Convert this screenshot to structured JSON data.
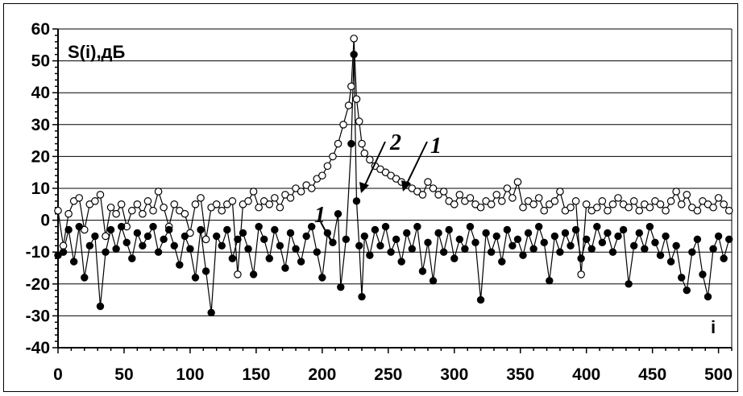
{
  "chart_data": {
    "type": "line",
    "ylabel": "S(i),дБ",
    "xlabel": "i",
    "xlim": [
      0,
      510
    ],
    "ylim": [
      -40,
      60
    ],
    "x_ticks": [
      "0",
      "50",
      "100",
      "150",
      "200",
      "250",
      "300",
      "350",
      "400",
      "450",
      "500"
    ],
    "y_ticks": [
      "60",
      "50",
      "40",
      "30",
      "20",
      "10",
      "0",
      "-10",
      "-20",
      "-30",
      "-40"
    ],
    "grid": "horizontal",
    "series": [
      {
        "marker": "open-circle",
        "curve_label": "1",
        "peak": {
          "x": 224,
          "y": 57
        },
        "points": [
          [
            0,
            3
          ],
          [
            4,
            -8
          ],
          [
            8,
            2
          ],
          [
            12,
            6
          ],
          [
            16,
            7
          ],
          [
            20,
            -3
          ],
          [
            24,
            5
          ],
          [
            28,
            6
          ],
          [
            32,
            8
          ],
          [
            36,
            -5
          ],
          [
            40,
            4
          ],
          [
            44,
            2
          ],
          [
            48,
            5
          ],
          [
            52,
            -2
          ],
          [
            56,
            3
          ],
          [
            60,
            5
          ],
          [
            64,
            2
          ],
          [
            68,
            6
          ],
          [
            72,
            3
          ],
          [
            76,
            9
          ],
          [
            80,
            4
          ],
          [
            84,
            -2
          ],
          [
            88,
            5
          ],
          [
            92,
            3
          ],
          [
            96,
            2
          ],
          [
            100,
            -4
          ],
          [
            104,
            5
          ],
          [
            108,
            7
          ],
          [
            112,
            -6
          ],
          [
            116,
            4
          ],
          [
            120,
            5
          ],
          [
            124,
            3
          ],
          [
            128,
            5
          ],
          [
            132,
            6
          ],
          [
            136,
            -17
          ],
          [
            140,
            5
          ],
          [
            144,
            6
          ],
          [
            148,
            9
          ],
          [
            152,
            4
          ],
          [
            156,
            6
          ],
          [
            160,
            5
          ],
          [
            164,
            7
          ],
          [
            168,
            4
          ],
          [
            172,
            8
          ],
          [
            176,
            7
          ],
          [
            180,
            10
          ],
          [
            184,
            9
          ],
          [
            188,
            11
          ],
          [
            192,
            10
          ],
          [
            196,
            13
          ],
          [
            200,
            14
          ],
          [
            204,
            17
          ],
          [
            208,
            20
          ],
          [
            212,
            24
          ],
          [
            216,
            30
          ],
          [
            220,
            36
          ],
          [
            222,
            42
          ],
          [
            224,
            57
          ],
          [
            226,
            38
          ],
          [
            228,
            31
          ],
          [
            230,
            24
          ],
          [
            232,
            21
          ],
          [
            236,
            19
          ],
          [
            240,
            17
          ],
          [
            244,
            16
          ],
          [
            248,
            15
          ],
          [
            252,
            14
          ],
          [
            256,
            13
          ],
          [
            260,
            12
          ],
          [
            264,
            11
          ],
          [
            268,
            10
          ],
          [
            272,
            9
          ],
          [
            276,
            8
          ],
          [
            280,
            12
          ],
          [
            284,
            10
          ],
          [
            288,
            8
          ],
          [
            292,
            9
          ],
          [
            296,
            6
          ],
          [
            300,
            5
          ],
          [
            304,
            8
          ],
          [
            308,
            6
          ],
          [
            312,
            7
          ],
          [
            316,
            5
          ],
          [
            320,
            4
          ],
          [
            324,
            6
          ],
          [
            328,
            5
          ],
          [
            332,
            8
          ],
          [
            336,
            6
          ],
          [
            340,
            10
          ],
          [
            344,
            7
          ],
          [
            348,
            12
          ],
          [
            352,
            4
          ],
          [
            356,
            6
          ],
          [
            360,
            5
          ],
          [
            364,
            7
          ],
          [
            368,
            3
          ],
          [
            372,
            5
          ],
          [
            376,
            6
          ],
          [
            380,
            9
          ],
          [
            384,
            3
          ],
          [
            388,
            4
          ],
          [
            392,
            6
          ],
          [
            396,
            -17
          ],
          [
            400,
            5
          ],
          [
            404,
            3
          ],
          [
            408,
            4
          ],
          [
            412,
            6
          ],
          [
            416,
            3
          ],
          [
            420,
            5
          ],
          [
            424,
            7
          ],
          [
            428,
            5
          ],
          [
            432,
            4
          ],
          [
            436,
            6
          ],
          [
            440,
            3
          ],
          [
            444,
            5
          ],
          [
            448,
            4
          ],
          [
            452,
            6
          ],
          [
            456,
            5
          ],
          [
            460,
            3
          ],
          [
            464,
            6
          ],
          [
            468,
            9
          ],
          [
            472,
            5
          ],
          [
            476,
            8
          ],
          [
            480,
            4
          ],
          [
            484,
            3
          ],
          [
            488,
            6
          ],
          [
            492,
            5
          ],
          [
            496,
            4
          ],
          [
            500,
            7
          ],
          [
            504,
            5
          ],
          [
            508,
            3
          ]
        ]
      },
      {
        "marker": "filled-circle",
        "curve_label": "2",
        "peak": {
          "x": 224,
          "y": 52
        },
        "points": [
          [
            0,
            -11
          ],
          [
            4,
            -10
          ],
          [
            8,
            -3
          ],
          [
            12,
            -13
          ],
          [
            16,
            -2
          ],
          [
            20,
            -18
          ],
          [
            24,
            -8
          ],
          [
            28,
            -5
          ],
          [
            32,
            -27
          ],
          [
            36,
            -10
          ],
          [
            40,
            -3
          ],
          [
            44,
            -9
          ],
          [
            48,
            -2
          ],
          [
            52,
            -7
          ],
          [
            56,
            -12
          ],
          [
            60,
            -4
          ],
          [
            64,
            -8
          ],
          [
            68,
            -5
          ],
          [
            72,
            -2
          ],
          [
            76,
            -10
          ],
          [
            80,
            -6
          ],
          [
            84,
            -3
          ],
          [
            88,
            -8
          ],
          [
            92,
            -14
          ],
          [
            96,
            -5
          ],
          [
            100,
            -9
          ],
          [
            104,
            -18
          ],
          [
            108,
            -3
          ],
          [
            112,
            -16
          ],
          [
            116,
            -29
          ],
          [
            120,
            -5
          ],
          [
            124,
            -8
          ],
          [
            128,
            -3
          ],
          [
            132,
            -12
          ],
          [
            136,
            -6
          ],
          [
            140,
            -4
          ],
          [
            144,
            -9
          ],
          [
            148,
            -17
          ],
          [
            152,
            -2
          ],
          [
            156,
            -6
          ],
          [
            160,
            -12
          ],
          [
            164,
            -3
          ],
          [
            168,
            -8
          ],
          [
            172,
            -15
          ],
          [
            176,
            -4
          ],
          [
            180,
            -9
          ],
          [
            184,
            -13
          ],
          [
            188,
            -5
          ],
          [
            192,
            -2
          ],
          [
            196,
            -10
          ],
          [
            200,
            -18
          ],
          [
            204,
            -4
          ],
          [
            208,
            -7
          ],
          [
            212,
            2
          ],
          [
            214,
            -21
          ],
          [
            218,
            -6
          ],
          [
            222,
            24
          ],
          [
            224,
            52
          ],
          [
            226,
            6
          ],
          [
            228,
            -8
          ],
          [
            230,
            -24
          ],
          [
            232,
            -5
          ],
          [
            236,
            -11
          ],
          [
            240,
            -3
          ],
          [
            244,
            -8
          ],
          [
            248,
            -2
          ],
          [
            252,
            -10
          ],
          [
            256,
            -6
          ],
          [
            260,
            -13
          ],
          [
            264,
            -4
          ],
          [
            268,
            -9
          ],
          [
            272,
            -2
          ],
          [
            276,
            -16
          ],
          [
            280,
            -7
          ],
          [
            284,
            -19
          ],
          [
            288,
            -4
          ],
          [
            292,
            -10
          ],
          [
            296,
            -3
          ],
          [
            300,
            -12
          ],
          [
            304,
            -6
          ],
          [
            308,
            -9
          ],
          [
            312,
            -2
          ],
          [
            316,
            -7
          ],
          [
            320,
            -25
          ],
          [
            324,
            -4
          ],
          [
            328,
            -10
          ],
          [
            332,
            -5
          ],
          [
            336,
            -13
          ],
          [
            340,
            -3
          ],
          [
            344,
            -8
          ],
          [
            348,
            -6
          ],
          [
            352,
            -11
          ],
          [
            356,
            -4
          ],
          [
            360,
            -9
          ],
          [
            364,
            -2
          ],
          [
            368,
            -7
          ],
          [
            372,
            -19
          ],
          [
            376,
            -5
          ],
          [
            380,
            -10
          ],
          [
            384,
            -4
          ],
          [
            388,
            -8
          ],
          [
            392,
            -3
          ],
          [
            396,
            -12
          ],
          [
            400,
            -6
          ],
          [
            404,
            -9
          ],
          [
            408,
            -2
          ],
          [
            412,
            -7
          ],
          [
            416,
            -4
          ],
          [
            420,
            -10
          ],
          [
            424,
            -5
          ],
          [
            428,
            -3
          ],
          [
            432,
            -20
          ],
          [
            436,
            -8
          ],
          [
            440,
            -4
          ],
          [
            444,
            -9
          ],
          [
            448,
            -2
          ],
          [
            452,
            -7
          ],
          [
            456,
            -11
          ],
          [
            460,
            -5
          ],
          [
            464,
            -13
          ],
          [
            468,
            -8
          ],
          [
            472,
            -18
          ],
          [
            476,
            -22
          ],
          [
            480,
            -10
          ],
          [
            484,
            -6
          ],
          [
            488,
            -17
          ],
          [
            492,
            -24
          ],
          [
            496,
            -9
          ],
          [
            500,
            -5
          ],
          [
            504,
            -12
          ],
          [
            508,
            -6
          ]
        ]
      }
    ]
  },
  "annotations": {
    "label_2": "2",
    "label_1": "1",
    "label_1_small": "1"
  }
}
